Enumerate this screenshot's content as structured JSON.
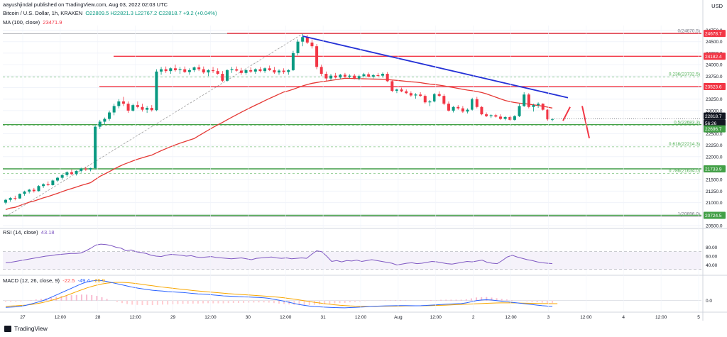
{
  "header": {
    "meta": "aayushjindal published on TradingView.com, Aug 03, 2022 02:03 UTC",
    "symbol": "Bitcoin / U.S. Dollar, 1h, KRAKEN",
    "ohlc": "O22809.5  H22821.3  L22767.2  C22818.7  +9.2 (+0.04%)",
    "ma_label": "MA (100, close)",
    "ma_value": "23471.9",
    "currency": "USD"
  },
  "footer": {
    "brand": "TradingView"
  },
  "colors": {
    "up": "#089981",
    "down": "#f23645",
    "ma": "#e53935",
    "trend": "#2431d6",
    "rsi": "#7e57c2",
    "macd": "#2962ff",
    "signal": "#f7a600",
    "hline": "#f23645",
    "support": "#43a047"
  },
  "chart_data": [
    {
      "type": "candlestick",
      "title": "Bitcoin / U.S. Dollar, 1h, KRAKEN",
      "y_axis": {
        "ticks": [
          20500,
          20750,
          21000,
          21250,
          21500,
          21750,
          22000,
          22250,
          22500,
          22750,
          23000,
          23250,
          23500,
          23750,
          24000,
          24250,
          24500,
          24750
        ],
        "side": "right"
      },
      "x_axis": {
        "ticks": [
          "27",
          "12:00",
          "28",
          "12:00",
          "29",
          "12:00",
          "30",
          "12:00",
          "31",
          "12:00",
          "Aug",
          "12:00",
          "2",
          "12:00",
          "3",
          "12:00",
          "4",
          "12:00",
          "5"
        ]
      },
      "candles_approx": [
        [
          21000,
          21080,
          20960,
          21060
        ],
        [
          21060,
          21120,
          21020,
          21100
        ],
        [
          21100,
          21150,
          21050,
          21090
        ],
        [
          21090,
          21200,
          21080,
          21190
        ],
        [
          21190,
          21260,
          21150,
          21240
        ],
        [
          21240,
          21300,
          21200,
          21280
        ],
        [
          21280,
          21320,
          21220,
          21250
        ],
        [
          21250,
          21380,
          21240,
          21360
        ],
        [
          21360,
          21420,
          21320,
          21400
        ],
        [
          21400,
          21460,
          21360,
          21380
        ],
        [
          21380,
          21500,
          21370,
          21480
        ],
        [
          21480,
          21560,
          21450,
          21540
        ],
        [
          21540,
          21620,
          21500,
          21600
        ],
        [
          21600,
          21680,
          21560,
          21660
        ],
        [
          21660,
          21720,
          21600,
          21620
        ],
        [
          21620,
          21700,
          21590,
          21690
        ],
        [
          21690,
          21760,
          21650,
          21740
        ],
        [
          21740,
          21780,
          21690,
          21720
        ],
        [
          21720,
          21760,
          21680,
          21750
        ],
        [
          21750,
          22700,
          21720,
          22650
        ],
        [
          22650,
          22800,
          22600,
          22760
        ],
        [
          22760,
          22850,
          22700,
          22820
        ],
        [
          22820,
          23000,
          22780,
          22960
        ],
        [
          22960,
          23150,
          22900,
          23100
        ],
        [
          23100,
          23250,
          23050,
          23200
        ],
        [
          23200,
          23300,
          23100,
          23150
        ],
        [
          23150,
          23200,
          22950,
          23000
        ],
        [
          23000,
          23150,
          22980,
          23120
        ],
        [
          23120,
          23200,
          23050,
          23080
        ],
        [
          23080,
          23150,
          22980,
          23020
        ],
        [
          23020,
          23100,
          22950,
          23060
        ],
        [
          23060,
          23120,
          22980,
          23010
        ],
        [
          23010,
          23900,
          22990,
          23850
        ],
        [
          23850,
          23950,
          23780,
          23900
        ],
        [
          23900,
          23960,
          23820,
          23860
        ],
        [
          23860,
          23940,
          23800,
          23920
        ],
        [
          23920,
          24000,
          23850,
          23880
        ],
        [
          23880,
          23950,
          23800,
          23900
        ],
        [
          23900,
          23960,
          23820,
          23840
        ],
        [
          23840,
          23920,
          23780,
          23880
        ],
        [
          23880,
          23960,
          23840,
          23940
        ],
        [
          23940,
          24000,
          23860,
          23900
        ],
        [
          23900,
          23960,
          23800,
          23830
        ],
        [
          23830,
          23900,
          23750,
          23880
        ],
        [
          23880,
          23950,
          23820,
          23860
        ],
        [
          23860,
          23920,
          23780,
          23800
        ],
        [
          23800,
          23860,
          23620,
          23650
        ],
        [
          23650,
          23900,
          23630,
          23880
        ],
        [
          23880,
          23950,
          23820,
          23900
        ],
        [
          23900,
          23960,
          23850,
          23870
        ],
        [
          23870,
          23930,
          23780,
          23820
        ],
        [
          23820,
          23900,
          23780,
          23880
        ],
        [
          23880,
          23940,
          23820,
          23850
        ],
        [
          23850,
          23920,
          23800,
          23900
        ],
        [
          23900,
          23950,
          23830,
          23860
        ],
        [
          23860,
          23940,
          23820,
          23920
        ],
        [
          23920,
          23980,
          23860,
          23880
        ],
        [
          23880,
          23950,
          23800,
          23830
        ],
        [
          23830,
          23900,
          23780,
          23870
        ],
        [
          23870,
          23920,
          23800,
          23840
        ],
        [
          23840,
          23900,
          23780,
          23880
        ],
        [
          23880,
          24300,
          23860,
          24250
        ],
        [
          24250,
          24550,
          24200,
          24500
        ],
        [
          24500,
          24670,
          24400,
          24600
        ],
        [
          24600,
          24650,
          24450,
          24480
        ],
        [
          24480,
          24550,
          24350,
          24400
        ],
        [
          24400,
          24450,
          23900,
          23950
        ],
        [
          23950,
          24000,
          23750,
          23800
        ],
        [
          23800,
          23850,
          23650,
          23700
        ],
        [
          23700,
          23800,
          23650,
          23760
        ],
        [
          23760,
          23820,
          23700,
          23720
        ],
        [
          23720,
          23800,
          23690,
          23780
        ],
        [
          23780,
          23820,
          23720,
          23740
        ],
        [
          23740,
          23790,
          23700,
          23760
        ],
        [
          23760,
          23800,
          23680,
          23700
        ],
        [
          23700,
          23780,
          23660,
          23750
        ],
        [
          23750,
          23820,
          23720,
          23790
        ],
        [
          23790,
          23830,
          23720,
          23740
        ],
        [
          23740,
          23800,
          23700,
          23770
        ],
        [
          23770,
          23820,
          23740,
          23760
        ],
        [
          23760,
          23830,
          23720,
          23800
        ],
        [
          23800,
          23840,
          23620,
          23640
        ],
        [
          23640,
          23660,
          23400,
          23430
        ],
        [
          23430,
          23480,
          23380,
          23460
        ],
        [
          23460,
          23500,
          23400,
          23420
        ],
        [
          23420,
          23460,
          23360,
          23380
        ],
        [
          23380,
          23420,
          23300,
          23330
        ],
        [
          23330,
          23380,
          23260,
          23350
        ],
        [
          23350,
          23400,
          23300,
          23320
        ],
        [
          23320,
          23350,
          23150,
          23180
        ],
        [
          23180,
          23230,
          23100,
          23200
        ],
        [
          23200,
          23380,
          23180,
          23360
        ],
        [
          23360,
          23420,
          23300,
          23320
        ],
        [
          23320,
          23360,
          23120,
          23150
        ],
        [
          23150,
          23200,
          22980,
          23000
        ],
        [
          23000,
          23100,
          22960,
          23080
        ],
        [
          23080,
          23120,
          23020,
          23050
        ],
        [
          23050,
          23100,
          22950,
          22980
        ],
        [
          22980,
          23050,
          22940,
          23020
        ],
        [
          23020,
          23280,
          23000,
          23250
        ],
        [
          23250,
          23300,
          23050,
          23080
        ],
        [
          23080,
          23100,
          22900,
          22920
        ],
        [
          22920,
          22960,
          22860,
          22880
        ],
        [
          22880,
          22920,
          22840,
          22900
        ],
        [
          22900,
          22930,
          22850,
          22870
        ],
        [
          22870,
          22920,
          22800,
          22820
        ],
        [
          22820,
          22880,
          22790,
          22860
        ],
        [
          22860,
          22890,
          22780,
          22800
        ],
        [
          22800,
          22900,
          22780,
          22880
        ],
        [
          22880,
          23150,
          22860,
          23100
        ],
        [
          23100,
          23400,
          23080,
          23350
        ],
        [
          23350,
          23380,
          23050,
          23080
        ],
        [
          23080,
          23150,
          22980,
          23120
        ],
        [
          23120,
          23180,
          23060,
          23150
        ],
        [
          23150,
          23160,
          23000,
          23020
        ],
        [
          23020,
          23030,
          22780,
          22810
        ],
        [
          22810,
          22821,
          22767,
          22818
        ]
      ],
      "moving_average": {
        "name": "MA (100, close)",
        "last_value": 23471.9
      },
      "trend_line": {
        "from": [
          24620,
          "31 00:00"
        ],
        "to": [
          23280,
          "Aug 3 ~14:00"
        ]
      },
      "horizontal_lines": [
        24678.7,
        24182.4,
        23523.6,
        22696.7,
        21733.9,
        20724.5
      ],
      "fibonacci": [
        {
          "level": "0",
          "value": 24670.5,
          "label": "0(24670.5)"
        },
        {
          "level": "0.236",
          "value": 23732.5,
          "label": "0.236(23732.5)"
        },
        {
          "level": "0.5",
          "value": 22683.3,
          "label": "0.5(22683.3)"
        },
        {
          "level": "0.618",
          "value": 22214.3,
          "label": "0.618(22214.3)"
        },
        {
          "level": "0.786",
          "value": 21634.0,
          "label": "0.786(21634.0)"
        },
        {
          "level": "1",
          "value": 20696.0,
          "label": "1(20696.0)"
        }
      ],
      "price_tags": [
        {
          "value": "24678.7",
          "color": "#f23645"
        },
        {
          "value": "24182.4",
          "color": "#f23645"
        },
        {
          "value": "23523.6",
          "color": "#f23645"
        },
        {
          "value": "22818.7",
          "color": "#131722"
        },
        {
          "value": "56:26",
          "color": "#131722"
        },
        {
          "value": "22696.7",
          "color": "#43a047"
        },
        {
          "value": "21733.9",
          "color": "#43a047"
        },
        {
          "value": "20724.5",
          "color": "#43a047"
        }
      ]
    },
    {
      "type": "line",
      "title": "RSI (14, close)",
      "current_value": 43.18,
      "ylim": [
        20,
        100
      ],
      "y_ticks": [
        40.0,
        60.0,
        80.0
      ],
      "bands": [
        30,
        70
      ],
      "values_approx": [
        45,
        46,
        48,
        50,
        52,
        54,
        56,
        58,
        60,
        61,
        63,
        64,
        65,
        66,
        66,
        67,
        72,
        78,
        85,
        87,
        86,
        84,
        80,
        78,
        72,
        74,
        70,
        68,
        66,
        62,
        60,
        59,
        62,
        64,
        63,
        62,
        60,
        61,
        58,
        57,
        58,
        59,
        57,
        56,
        55,
        54,
        55,
        56,
        54,
        52,
        55,
        56,
        57,
        58,
        56,
        55,
        56,
        54,
        55,
        56,
        55,
        64,
        72,
        70,
        60,
        48,
        50,
        47,
        50,
        49,
        51,
        48,
        50,
        52,
        50,
        48,
        46,
        44,
        40,
        42,
        44,
        45,
        43,
        44,
        46,
        48,
        47,
        45,
        43,
        42,
        44,
        46,
        48,
        47,
        49,
        51,
        46,
        44,
        43,
        50,
        58,
        62,
        58,
        55,
        52,
        50,
        47,
        45,
        44,
        43
      ]
    },
    {
      "type": "line",
      "title": "MACD (12, 26, close, 9)",
      "current_values": {
        "histogram": "-22.5",
        "macd": "-49.4",
        "signal": "-26.9"
      },
      "y_ticks": [
        0.0
      ],
      "macd_values_approx": [
        -60,
        -58,
        -55,
        -50,
        -42,
        -30,
        -18,
        -5,
        10,
        30,
        50,
        70,
        90,
        110,
        130,
        150,
        165,
        175,
        180,
        178,
        170,
        160,
        150,
        140,
        130,
        120,
        112,
        105,
        98,
        92,
        88,
        85,
        80,
        78,
        75,
        72,
        68,
        64,
        60,
        58,
        55,
        50,
        46,
        42,
        40,
        38,
        35,
        33,
        32,
        30,
        28,
        25,
        20,
        12,
        4,
        -5,
        -15,
        -25,
        -35,
        -42,
        -48,
        -52,
        -55,
        -58,
        -60,
        -62,
        -63,
        -64,
        -62,
        -60,
        -58,
        -55,
        -52,
        -50,
        -48,
        -47,
        -46,
        -45,
        -44,
        -44,
        -45,
        -46,
        -45,
        -43,
        -40,
        -38,
        -35,
        -32,
        -30,
        -28,
        -26,
        -20,
        -10,
        0,
        5,
        8,
        5,
        0,
        -5,
        -10,
        -15,
        -20,
        -25,
        -30,
        -35,
        -40,
        -45,
        -48,
        -49
      ],
      "signal_values_approx": [
        -50,
        -48,
        -46,
        -43,
        -40,
        -35,
        -28,
        -20,
        -10,
        2,
        15,
        30,
        45,
        62,
        80,
        96,
        112,
        126,
        138,
        148,
        155,
        160,
        162,
        162,
        160,
        156,
        150,
        145,
        138,
        132,
        126,
        120,
        115,
        110,
        105,
        100,
        95,
        90,
        86,
        82,
        78,
        74,
        70,
        66,
        62,
        59,
        56,
        53,
        50,
        47,
        44,
        41,
        38,
        34,
        30,
        25,
        19,
        13,
        6,
        -1,
        -8,
        -15,
        -21,
        -27,
        -32,
        -37,
        -41,
        -44,
        -47,
        -49,
        -50,
        -51,
        -51,
        -51,
        -50,
        -50,
        -49,
        -49,
        -48,
        -47,
        -47,
        -46,
        -46,
        -45,
        -44,
        -43,
        -42,
        -40,
        -38,
        -36,
        -34,
        -32,
        -30,
        -28,
        -26,
        -24,
        -22,
        -21,
        -20,
        -20,
        -20,
        -21,
        -22,
        -23,
        -24,
        -25,
        -26,
        -26,
        -27,
        -27
      ]
    }
  ]
}
